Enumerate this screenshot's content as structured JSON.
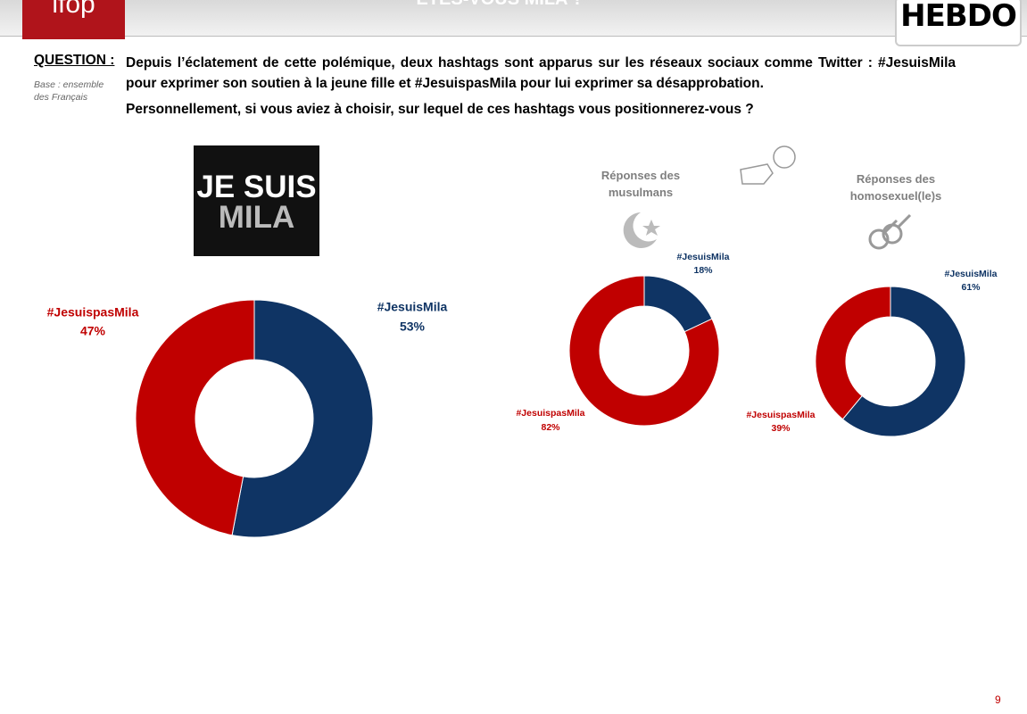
{
  "header": {
    "logo": "ifop",
    "title": "ÊTES-VOUS MILA ?",
    "brand": "HEBDO"
  },
  "question": {
    "label": "QUESTION :",
    "base": "Base : ensemble des Français",
    "text": "Depuis l’éclatement de cette polémique, deux hashtags sont apparus sur les réseaux sociaux comme Twitter : #JesuisMila pour exprimer son soutien à la jeune fille et #JesuispasMila pour lui exprimer sa désapprobation.",
    "prompt": "Personnellement, si vous aviez à choisir, sur lequel de ces hashtags vous positionnerez-vous ?"
  },
  "image_text": [
    "JE SUIS",
    "MILA"
  ],
  "page_number": "9",
  "chart_data": [
    {
      "type": "pie",
      "categories": [
        "#JesuisMila",
        "#JesuispasMila"
      ],
      "values": [
        53,
        47
      ],
      "value_labels": [
        "53%",
        "47%"
      ],
      "colors": [
        "#0f3464",
        "#c00000"
      ]
    },
    {
      "type": "pie",
      "title": "Réponses des musulmans",
      "categories": [
        "#JesuisMila",
        "#JesuispasMila"
      ],
      "values": [
        18,
        82
      ],
      "value_labels": [
        "18%",
        "82%"
      ],
      "colors": [
        "#0f3464",
        "#c00000"
      ]
    },
    {
      "type": "pie",
      "title": "Réponses des homosexuel(le)s",
      "categories": [
        "#JesuisMila",
        "#JesuispasMila"
      ],
      "values": [
        61,
        39
      ],
      "value_labels": [
        "61%",
        "39%"
      ],
      "colors": [
        "#0f3464",
        "#c00000"
      ]
    }
  ]
}
